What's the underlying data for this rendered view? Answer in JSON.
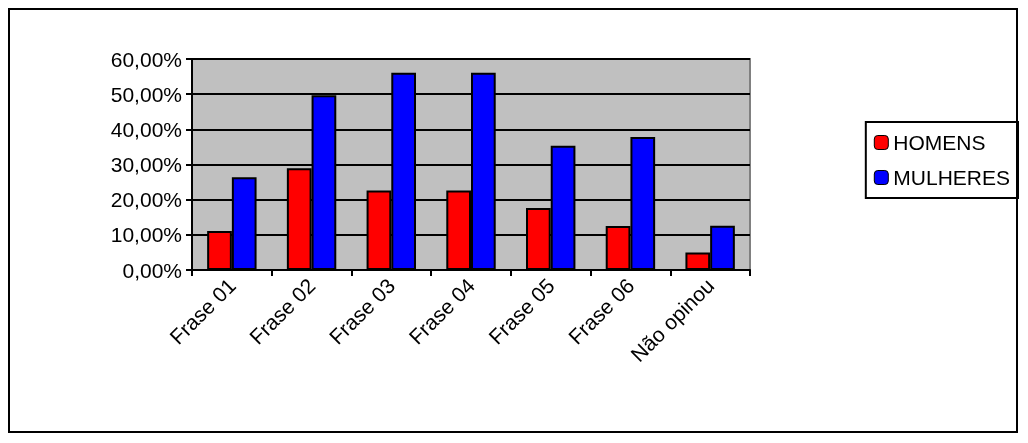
{
  "chart_data": {
    "type": "bar",
    "categories": [
      "Frase 01",
      "Frase 02",
      "Frase 03",
      "Frase 04",
      "Frase 05",
      "Frase 06",
      "Não opinou"
    ],
    "series": [
      {
        "name": "HOMENS",
        "color": "#ff0000",
        "values": [
          11.1,
          28.9,
          22.6,
          22.6,
          17.6,
          12.5,
          5.0
        ]
      },
      {
        "name": "MULHERES",
        "color": "#0000ff",
        "values": [
          26.4,
          49.7,
          56.1,
          56.1,
          35.3,
          37.8,
          12.6
        ]
      }
    ],
    "ylim": [
      0,
      60
    ],
    "yticks": [
      {
        "value": 0,
        "label": "0,00%"
      },
      {
        "value": 10,
        "label": "10,00%"
      },
      {
        "value": 20,
        "label": "20,00%"
      },
      {
        "value": 30,
        "label": "30,00%"
      },
      {
        "value": 40,
        "label": "40,00%"
      },
      {
        "value": 50,
        "label": "50,00%"
      },
      {
        "value": 60,
        "label": "60,00%"
      }
    ],
    "grid": "y",
    "legend": "right"
  }
}
